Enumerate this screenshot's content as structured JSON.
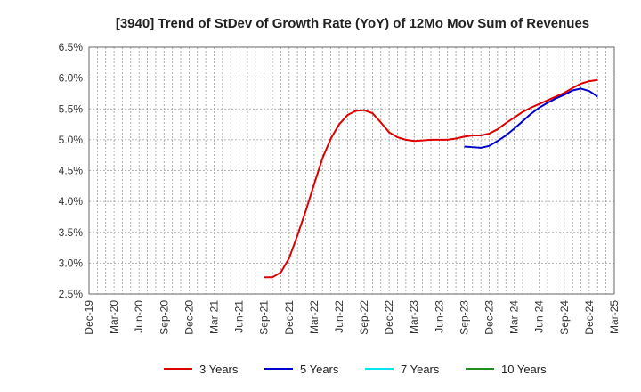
{
  "chart_data": {
    "type": "line",
    "title": "[3940]  Trend of StDev of Growth Rate (YoY) of 12Mo Mov Sum of Revenues",
    "xlabel": "",
    "ylabel": "",
    "ylim": [
      2.5,
      6.5
    ],
    "y_ticks": [
      "2.5%",
      "3.0%",
      "3.5%",
      "4.0%",
      "4.5%",
      "5.0%",
      "5.5%",
      "6.0%",
      "6.5%"
    ],
    "x_ticks": [
      "Dec-19",
      "Mar-20",
      "Jun-20",
      "Sep-20",
      "Dec-20",
      "Mar-21",
      "Jun-21",
      "Sep-21",
      "Dec-21",
      "Mar-22",
      "Jun-22",
      "Sep-22",
      "Dec-22",
      "Mar-23",
      "Jun-23",
      "Sep-23",
      "Dec-23",
      "Mar-24",
      "Jun-24",
      "Sep-24",
      "Dec-24",
      "Mar-25"
    ],
    "x_range_months": [
      0,
      63
    ],
    "x_origin": "Dec-19",
    "grid": true,
    "legend_position": "bottom",
    "series": [
      {
        "name": "3 Years",
        "color": "#dd0000",
        "points": [
          [
            21,
            2.77
          ],
          [
            22,
            2.77
          ],
          [
            23,
            2.85
          ],
          [
            24,
            3.08
          ],
          [
            25,
            3.45
          ],
          [
            26,
            3.85
          ],
          [
            27,
            4.28
          ],
          [
            28,
            4.7
          ],
          [
            29,
            5.02
          ],
          [
            30,
            5.25
          ],
          [
            31,
            5.4
          ],
          [
            32,
            5.47
          ],
          [
            33,
            5.48
          ],
          [
            34,
            5.43
          ],
          [
            35,
            5.28
          ],
          [
            36,
            5.12
          ],
          [
            37,
            5.04
          ],
          [
            38,
            5.0
          ],
          [
            39,
            4.98
          ],
          [
            40,
            4.99
          ],
          [
            41,
            5.0
          ],
          [
            42,
            5.0
          ],
          [
            43,
            5.0
          ],
          [
            44,
            5.02
          ],
          [
            45,
            5.05
          ],
          [
            46,
            5.07
          ],
          [
            47,
            5.07
          ],
          [
            48,
            5.1
          ],
          [
            49,
            5.17
          ],
          [
            50,
            5.27
          ],
          [
            51,
            5.36
          ],
          [
            52,
            5.45
          ],
          [
            53,
            5.52
          ],
          [
            54,
            5.58
          ],
          [
            55,
            5.64
          ],
          [
            56,
            5.7
          ],
          [
            57,
            5.76
          ],
          [
            58,
            5.84
          ],
          [
            59,
            5.91
          ],
          [
            60,
            5.95
          ],
          [
            61,
            5.97
          ]
        ]
      },
      {
        "name": "5 Years",
        "color": "#0000cc",
        "points": [
          [
            45,
            4.89
          ],
          [
            46,
            4.88
          ],
          [
            47,
            4.87
          ],
          [
            48,
            4.9
          ],
          [
            49,
            4.98
          ],
          [
            50,
            5.07
          ],
          [
            51,
            5.18
          ],
          [
            52,
            5.3
          ],
          [
            53,
            5.42
          ],
          [
            54,
            5.52
          ],
          [
            55,
            5.6
          ],
          [
            56,
            5.67
          ],
          [
            57,
            5.73
          ],
          [
            58,
            5.8
          ],
          [
            59,
            5.83
          ],
          [
            60,
            5.79
          ],
          [
            61,
            5.7
          ]
        ]
      },
      {
        "name": "7 Years",
        "color": "#00e5ee",
        "points": []
      },
      {
        "name": "10 Years",
        "color": "#228b22",
        "points": []
      }
    ]
  }
}
